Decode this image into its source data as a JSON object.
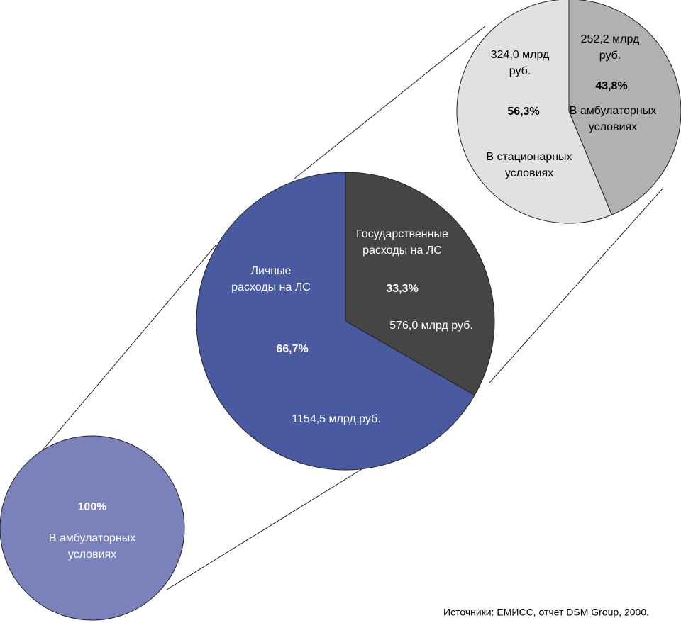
{
  "chart_data": [
    {
      "type": "pie",
      "values": [
        100
      ],
      "colors": [
        "#7b82bb"
      ],
      "labels": [
        [
          "В амбулаторных",
          "условиях"
        ]
      ],
      "value_labels": [
        "100%"
      ]
    },
    {
      "type": "pie",
      "values": [
        33.3,
        66.7
      ],
      "colors": [
        "#454545",
        "#4a5aa0"
      ],
      "labels": [
        [
          "Государственные",
          "расходы на ЛС"
        ],
        [
          "Личные",
          "расходы на ЛС"
        ]
      ],
      "value_labels": [
        "33,3%",
        "66,7%"
      ],
      "amount_labels": [
        [
          "576,0 млрд руб."
        ],
        [
          "1154,5 млрд руб."
        ]
      ]
    },
    {
      "type": "pie",
      "values": [
        43.8,
        56.3
      ],
      "colors": [
        "#b1b1b1",
        "#e1e1e1"
      ],
      "labels": [
        [
          "В амбулаторных",
          "условиях"
        ],
        [
          "В стационарных",
          "условиях"
        ]
      ],
      "value_labels": [
        "43,8%",
        "56,3%"
      ],
      "amount_labels": [
        [
          "252,2 млрд",
          "руб."
        ],
        [
          "324,0 млрд",
          "руб."
        ]
      ]
    }
  ],
  "source": "Источники: ЕМИСС, отчет DSM Group, 2000."
}
